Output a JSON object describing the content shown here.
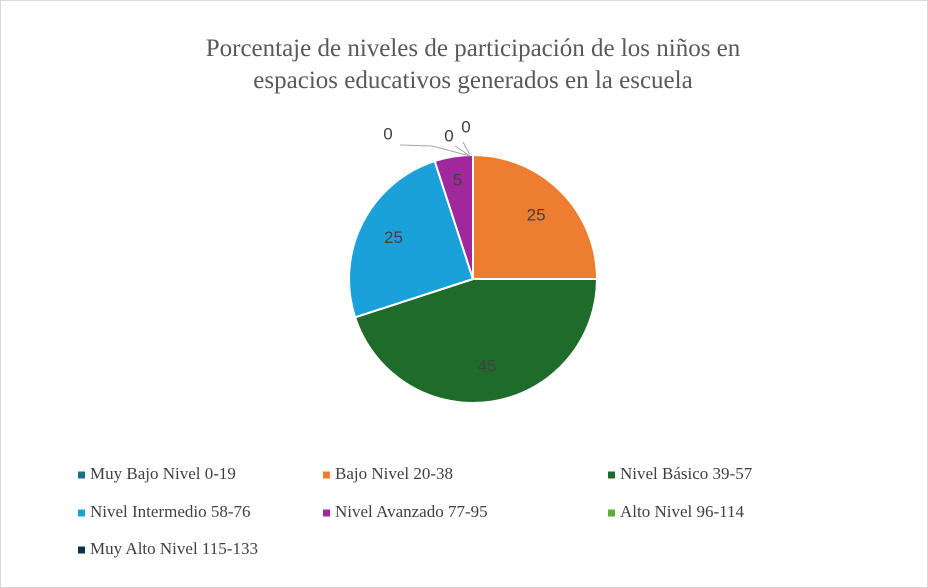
{
  "chart_data": {
    "type": "pie",
    "title": [
      "Porcentaje de niveles de participación de los niños en",
      "espacios educativos generados en la escuela"
    ],
    "categories": [
      "Muy Bajo Nivel 0-19",
      "Bajo Nivel 20-38",
      "Nivel Básico 39-57",
      "Nivel Intermedio 58-76",
      "Nivel Avanzado 77-95",
      "Alto Nivel 96-114",
      "Muy Alto Nivel 115-133"
    ],
    "values": [
      0,
      25,
      45,
      25,
      5,
      0,
      0
    ],
    "colors": [
      "#1f6f8b",
      "#ed7d31",
      "#1e6b2a",
      "#1ba1d9",
      "#a0279c",
      "#5ab031",
      "#0e2f44"
    ],
    "legend": "bottom"
  }
}
